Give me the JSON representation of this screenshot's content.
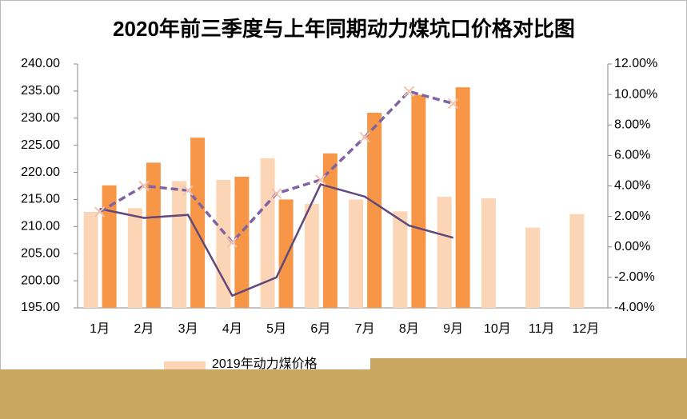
{
  "chart_data": {
    "type": "bar_line",
    "title": "2020年前三季度与上年同期动力煤坑口价格对比图",
    "categories": [
      "1月",
      "2月",
      "3月",
      "4月",
      "5月",
      "6月",
      "7月",
      "8月",
      "9月",
      "10月",
      "11月",
      "12月"
    ],
    "ylim": [
      195,
      240
    ],
    "yticks": [
      {
        "value": 195,
        "label": "195.00"
      },
      {
        "value": 200,
        "label": "200.00"
      },
      {
        "value": 205,
        "label": "205.00"
      },
      {
        "value": 210,
        "label": "210.00"
      },
      {
        "value": 215,
        "label": "215.00"
      },
      {
        "value": 220,
        "label": "220.00"
      },
      {
        "value": 225,
        "label": "225.00"
      },
      {
        "value": 230,
        "label": "230.00"
      },
      {
        "value": 235,
        "label": "235.00"
      },
      {
        "value": 240,
        "label": "240.00"
      }
    ],
    "y2lim": [
      -4,
      12
    ],
    "y2ticks": [
      {
        "value": -4,
        "label": "-4.00%"
      },
      {
        "value": -2,
        "label": "-2.00%"
      },
      {
        "value": 0,
        "label": "0.00%"
      },
      {
        "value": 2,
        "label": "2.00%"
      },
      {
        "value": 4,
        "label": "4.00%"
      },
      {
        "value": 6,
        "label": "6.00%"
      },
      {
        "value": 8,
        "label": "8.00%"
      },
      {
        "value": 10,
        "label": "10.00%"
      },
      {
        "value": 12,
        "label": "12.00%"
      }
    ],
    "series": [
      {
        "name": "2019年动力煤价格",
        "kind": "bar",
        "color": "#fbd5b5",
        "values": [
          212.7,
          213.4,
          218.4,
          218.6,
          222.6,
          214.2,
          215.0,
          212.8,
          215.5,
          215.2,
          209.8,
          212.3
        ]
      },
      {
        "kind": "bar",
        "color": "#f79646",
        "values": [
          217.6,
          221.8,
          226.4,
          219.2,
          215.0,
          223.5,
          231.0,
          234.3,
          235.7,
          null,
          null,
          null
        ]
      },
      {
        "kind": "line",
        "axis": "y2",
        "color": "#60497a",
        "values": [
          2.5,
          1.9,
          2.1,
          -3.2,
          -2.0,
          4.1,
          3.3,
          1.4,
          0.6,
          null,
          null,
          null
        ]
      },
      {
        "kind": "line",
        "axis": "y2",
        "dashed": true,
        "marker": "x",
        "color": "#8064a2",
        "marker_color": "#f2c4b0",
        "values": [
          2.3,
          4.0,
          3.7,
          0.3,
          3.5,
          4.4,
          7.2,
          10.2,
          9.4,
          null,
          null,
          null
        ]
      }
    ]
  }
}
